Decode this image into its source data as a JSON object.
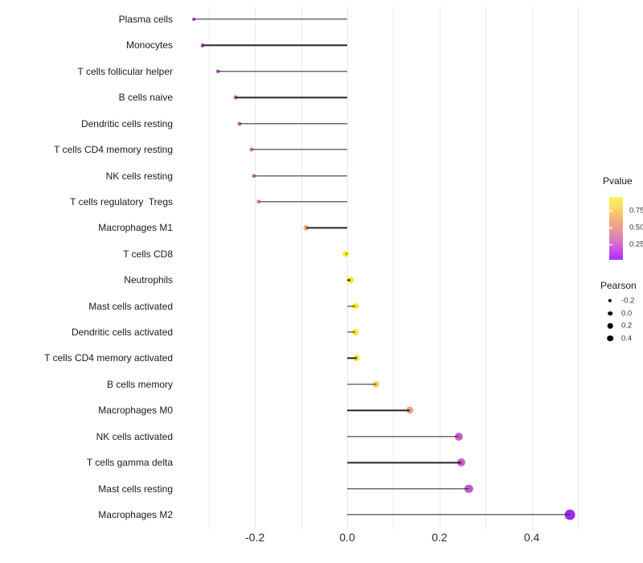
{
  "chart_data": {
    "type": "scatter",
    "variant": "lollipop",
    "orientation": "horizontal",
    "title": "",
    "xlabel": "",
    "ylabel": "",
    "xlim": [
      -0.371,
      0.521
    ],
    "baseline_x": 0.0,
    "grid": "vertical-only",
    "x_gridlines": [
      -0.3,
      -0.2,
      -0.1,
      0.0,
      0.1,
      0.2,
      0.3,
      0.4,
      0.5
    ],
    "x_major_ticks": {
      "values": [
        -0.2,
        0.0,
        0.2,
        0.4
      ],
      "labels": [
        "-0.2",
        "0.0",
        "0.2",
        "0.4"
      ]
    },
    "categories": [
      "Plasma cells",
      "Monocytes",
      "T cells follicular helper",
      "B cells naive",
      "Dendritic cells resting",
      "T cells CD4 memory resting",
      "NK cells resting",
      "T cells regulatory  Tregs",
      "Macrophages M1",
      "T cells CD8",
      "Neutrophils",
      "Mast cells activated",
      "Dendritic cells activated",
      "T cells CD4 memory activated",
      "B cells memory",
      "Macrophages M0",
      "NK cells activated",
      "T cells gamma delta",
      "Mast cells resting",
      "Macrophages M2"
    ],
    "points": [
      {
        "label": "Plasma cells",
        "pearson": -0.333,
        "pvalue_approx": 0.15,
        "color": "#A93BD0"
      },
      {
        "label": "Monocytes",
        "pearson": -0.314,
        "pvalue_approx": 0.17,
        "color": "#AE40D1"
      },
      {
        "label": "T cells follicular helper",
        "pearson": -0.28,
        "pvalue_approx": 0.22,
        "color": "#BB4ECA"
      },
      {
        "label": "B cells naive",
        "pearson": -0.242,
        "pvalue_approx": 0.27,
        "color": "#C65CC3"
      },
      {
        "label": "Dendritic cells resting",
        "pearson": -0.234,
        "pvalue_approx": 0.28,
        "color": "#C964BD"
      },
      {
        "label": "T cells CD4 memory resting",
        "pearson": -0.207,
        "pvalue_approx": 0.34,
        "color": "#D175B2"
      },
      {
        "label": "NK cells resting",
        "pearson": -0.203,
        "pvalue_approx": 0.35,
        "color": "#D279AF"
      },
      {
        "label": "T cells regulatory  Tregs",
        "pearson": -0.192,
        "pvalue_approx": 0.38,
        "color": "#D780AA"
      },
      {
        "label": "Macrophages M1",
        "pearson": -0.089,
        "pvalue_approx": 0.64,
        "color": "#EDAF7A"
      },
      {
        "label": "T cells CD8",
        "pearson": -0.003,
        "pvalue_approx": 0.95,
        "color": "#F6EC2D"
      },
      {
        "label": "Neutrophils",
        "pearson": 0.007,
        "pvalue_approx": 0.93,
        "color": "#F6EA26"
      },
      {
        "label": "Mast cells activated",
        "pearson": 0.017,
        "pvalue_approx": 0.92,
        "color": "#F7E928"
      },
      {
        "label": "Dendritic cells activated",
        "pearson": 0.017,
        "pvalue_approx": 0.92,
        "color": "#F7E928"
      },
      {
        "label": "T cells CD4 memory activated",
        "pearson": 0.02,
        "pvalue_approx": 0.92,
        "color": "#F7E828"
      },
      {
        "label": "B cells memory",
        "pearson": 0.062,
        "pvalue_approx": 0.81,
        "color": "#F0CC55"
      },
      {
        "label": "Macrophages M0",
        "pearson": 0.135,
        "pvalue_approx": 0.57,
        "color": "#ECA584"
      },
      {
        "label": "NK cells activated",
        "pearson": 0.242,
        "pvalue_approx": 0.28,
        "color": "#C55FC4"
      },
      {
        "label": "T cells gamma delta",
        "pearson": 0.247,
        "pvalue_approx": 0.27,
        "color": "#C65FC6"
      },
      {
        "label": "Mast cells resting",
        "pearson": 0.263,
        "pvalue_approx": 0.25,
        "color": "#C25AC8"
      },
      {
        "label": "Macrophages M2",
        "pearson": 0.482,
        "pvalue_approx": 0.03,
        "color": "#9C2BF0"
      }
    ],
    "legend": {
      "position": "right",
      "pvalue": {
        "title": "Pvalue",
        "tick_labels": [
          "0.75",
          "0.50",
          "0.25"
        ],
        "tick_values": [
          0.75,
          0.5,
          0.25
        ],
        "range": [
          0.03,
          0.95
        ],
        "gradient_stops": [
          "#FBF55C",
          "#F9DC63",
          "#F3B578",
          "#EC9B93",
          "#DD7FBC",
          "#C853E2",
          "#AC2EF5"
        ]
      },
      "pearson": {
        "title": "Pearson",
        "items": [
          {
            "label": "-0.2",
            "value": -0.2
          },
          {
            "label": "0.0",
            "value": 0.0
          },
          {
            "label": "0.2",
            "value": 0.2
          },
          {
            "label": "0.4",
            "value": 0.4
          }
        ],
        "dot_color": "#000000"
      }
    },
    "stem_color": "#262626",
    "gridline_color": "#EBEBEB",
    "axis_text_color": "#1A1A1A"
  }
}
